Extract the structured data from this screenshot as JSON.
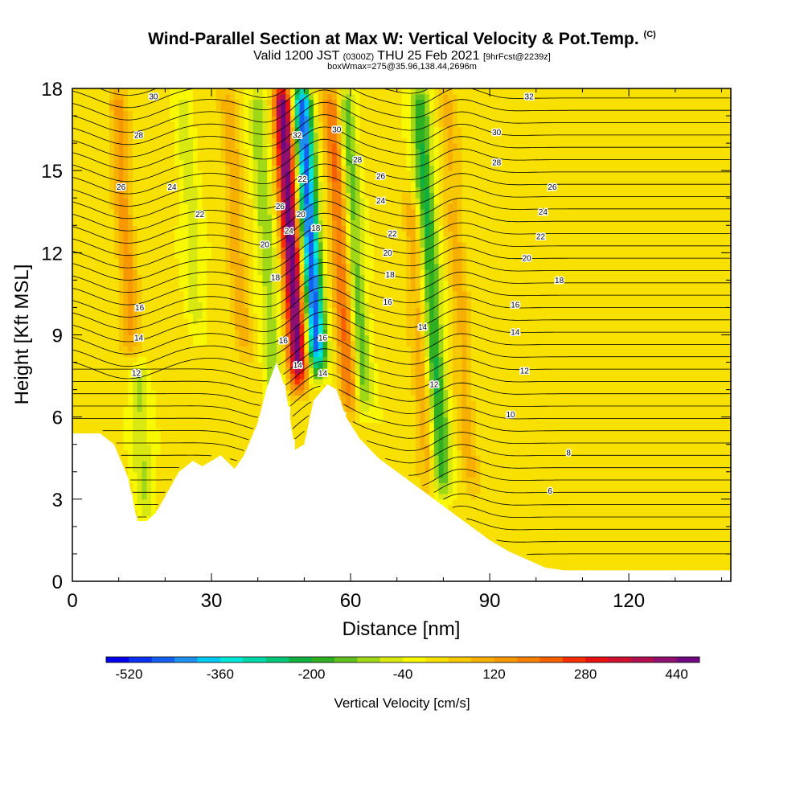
{
  "titles": {
    "main": "Wind-Parallel Section at Max W: Vertical Velocity & Pot.Temp.",
    "copyright": "(C)",
    "valid_prefix": "Valid 1200 JST",
    "valid_utc": "(0300Z)",
    "valid_date": "THU 25 Feb 2021",
    "forecast": "[9hrFcst@2239z]",
    "box_info": "boxWmax=275@35.96,138.44,2696m"
  },
  "chart_data": {
    "type": "heatmap",
    "xlabel": "Distance [nm]",
    "ylabel": "Height [Kft MSL]",
    "xlim": [
      0,
      142
    ],
    "ylim": [
      0,
      18
    ],
    "x_ticks": [
      0,
      30,
      60,
      90,
      120
    ],
    "y_ticks": [
      0,
      3,
      6,
      9,
      12,
      15,
      18
    ],
    "grid": false,
    "colorbar": {
      "label": "Vertical Velocity [cm/s]",
      "tick_values": [
        -520,
        -360,
        -200,
        -40,
        120,
        280,
        440
      ],
      "range": [
        -560,
        480
      ],
      "colors": [
        "#0000f0",
        "#0a30f0",
        "#1460f0",
        "#1e90f0",
        "#00c8f0",
        "#00e8d8",
        "#00d8a8",
        "#00c878",
        "#10b040",
        "#30b020",
        "#60c020",
        "#a0d818",
        "#d8e810",
        "#f8f800",
        "#f8e000",
        "#f8c800",
        "#f8b000",
        "#f89800",
        "#f88000",
        "#f86000",
        "#f83000",
        "#e81010",
        "#d01030",
        "#b01050",
        "#901070",
        "#700880"
      ]
    },
    "terrain_profile": {
      "x": [
        0,
        3,
        6,
        9,
        12,
        14,
        16,
        18,
        21,
        23,
        26,
        28,
        30,
        32,
        35,
        37,
        40,
        42,
        44,
        46,
        48,
        50,
        52,
        55,
        57,
        59,
        62,
        66,
        70,
        74,
        78,
        82,
        86,
        90,
        94,
        98,
        102,
        106,
        110,
        115,
        120,
        125,
        130,
        135,
        142
      ],
      "height_kft": [
        5.4,
        5.4,
        5.4,
        5.0,
        3.8,
        2.2,
        2.2,
        2.5,
        3.4,
        4.0,
        4.4,
        4.2,
        4.4,
        4.6,
        4.1,
        4.6,
        5.8,
        7.1,
        8.0,
        7.0,
        4.8,
        5.0,
        6.6,
        7.2,
        7.0,
        6.0,
        5.2,
        4.5,
        4.0,
        3.5,
        3.0,
        2.5,
        2.0,
        1.5,
        1.1,
        0.8,
        0.5,
        0.4,
        0.4,
        0.4,
        0.4,
        0.4,
        0.4,
        0.4,
        0.4
      ]
    },
    "vertical_velocity_features": [
      {
        "x_center": 49,
        "z_from": 7.0,
        "z_to": 18,
        "w_cm_s": 460
      },
      {
        "x_center": 53,
        "z_from": 7.5,
        "z_to": 18,
        "w_cm_s": -480
      },
      {
        "x_center": 44,
        "z_from": 6.0,
        "z_to": 18,
        "w_cm_s": -120
      },
      {
        "x_center": 60,
        "z_from": 6.0,
        "z_to": 18,
        "w_cm_s": 200
      },
      {
        "x_center": 63,
        "z_from": 6.0,
        "z_to": 18,
        "w_cm_s": -160
      },
      {
        "x_center": 80,
        "z_from": 3.0,
        "z_to": 18,
        "w_cm_s": -220
      },
      {
        "x_center": 77,
        "z_from": 3.0,
        "z_to": 14,
        "w_cm_s": 100
      },
      {
        "x_center": 86,
        "z_from": 3.0,
        "z_to": 18,
        "w_cm_s": 80
      },
      {
        "x_center": 16,
        "z_from": 2.2,
        "z_to": 8,
        "w_cm_s": -100
      },
      {
        "x_center": 13,
        "z_from": 8.0,
        "z_to": 18,
        "w_cm_s": 120
      },
      {
        "x_center": 27,
        "z_from": 9.0,
        "z_to": 18,
        "w_cm_s": -70
      },
      {
        "x_center": 37,
        "z_from": 8.0,
        "z_to": 18,
        "w_cm_s": 90
      },
      {
        "x_center": 105,
        "z_from": 0.4,
        "z_to": 5.0,
        "w_cm_s": 10
      }
    ],
    "theta_contour_labels": [
      {
        "x": 17.5,
        "z": 17.7,
        "text": "30"
      },
      {
        "x": 14.3,
        "z": 16.3,
        "text": "28"
      },
      {
        "x": 10.5,
        "z": 14.4,
        "text": "26"
      },
      {
        "x": 21.5,
        "z": 14.4,
        "text": "24"
      },
      {
        "x": 27.5,
        "z": 13.4,
        "text": "22"
      },
      {
        "x": 41.5,
        "z": 12.3,
        "text": "20"
      },
      {
        "x": 14.5,
        "z": 10.0,
        "text": "16"
      },
      {
        "x": 14.3,
        "z": 8.9,
        "text": "14"
      },
      {
        "x": 13.8,
        "z": 7.6,
        "text": "12"
      },
      {
        "x": 48.5,
        "z": 16.3,
        "text": "32"
      },
      {
        "x": 49.6,
        "z": 14.7,
        "text": "22"
      },
      {
        "x": 44.8,
        "z": 13.7,
        "text": "26"
      },
      {
        "x": 49.3,
        "z": 13.4,
        "text": "20"
      },
      {
        "x": 46.7,
        "z": 12.8,
        "text": "24"
      },
      {
        "x": 52.5,
        "z": 12.9,
        "text": "18"
      },
      {
        "x": 43.8,
        "z": 11.1,
        "text": "18"
      },
      {
        "x": 45.5,
        "z": 8.8,
        "text": "16"
      },
      {
        "x": 48.6,
        "z": 7.9,
        "text": "14"
      },
      {
        "x": 54.0,
        "z": 8.9,
        "text": "16"
      },
      {
        "x": 54.0,
        "z": 7.6,
        "text": "14"
      },
      {
        "x": 57.0,
        "z": 16.5,
        "text": "30"
      },
      {
        "x": 61.5,
        "z": 15.4,
        "text": "28"
      },
      {
        "x": 66.5,
        "z": 14.8,
        "text": "26"
      },
      {
        "x": 66.5,
        "z": 13.9,
        "text": "24"
      },
      {
        "x": 69.0,
        "z": 12.7,
        "text": "22"
      },
      {
        "x": 68.0,
        "z": 12.0,
        "text": "20"
      },
      {
        "x": 68.5,
        "z": 11.2,
        "text": "18"
      },
      {
        "x": 68.0,
        "z": 10.2,
        "text": "16"
      },
      {
        "x": 75.5,
        "z": 9.3,
        "text": "14"
      },
      {
        "x": 78.0,
        "z": 7.2,
        "text": "12"
      },
      {
        "x": 98.5,
        "z": 17.7,
        "text": "32"
      },
      {
        "x": 91.5,
        "z": 16.4,
        "text": "30"
      },
      {
        "x": 91.5,
        "z": 15.3,
        "text": "28"
      },
      {
        "x": 103.5,
        "z": 14.4,
        "text": "26"
      },
      {
        "x": 101.5,
        "z": 13.5,
        "text": "24"
      },
      {
        "x": 101.0,
        "z": 12.6,
        "text": "22"
      },
      {
        "x": 98.0,
        "z": 11.8,
        "text": "20"
      },
      {
        "x": 105.0,
        "z": 11.0,
        "text": "18"
      },
      {
        "x": 95.5,
        "z": 10.1,
        "text": "16"
      },
      {
        "x": 95.5,
        "z": 9.1,
        "text": "14"
      },
      {
        "x": 97.5,
        "z": 7.7,
        "text": "12"
      },
      {
        "x": 94.5,
        "z": 6.1,
        "text": "10"
      },
      {
        "x": 107.0,
        "z": 4.7,
        "text": "8"
      },
      {
        "x": 103.0,
        "z": 3.3,
        "text": "6"
      }
    ]
  }
}
